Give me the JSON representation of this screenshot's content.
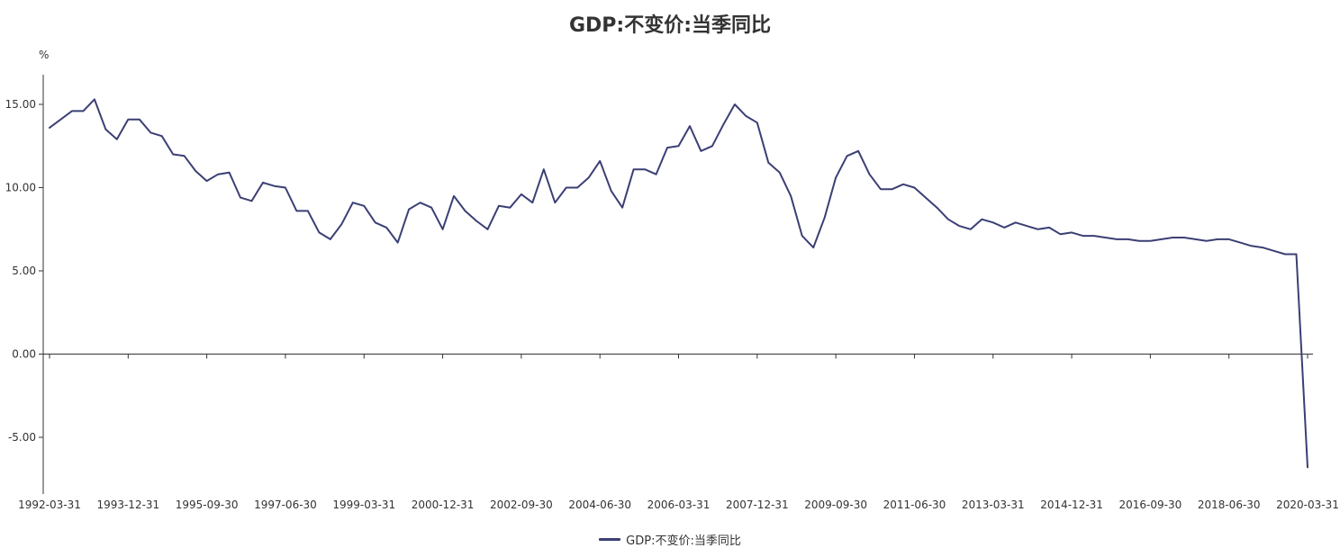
{
  "chart_data": {
    "type": "line",
    "title": "GDP:不变价:当季同比",
    "y_unit": "%",
    "ylim": [
      -7.5,
      17.5
    ],
    "y_ticks": [
      "15.00",
      "10.00",
      "5.00",
      "0.00",
      "-5.00"
    ],
    "x_tick_labels": [
      "1992-03-31",
      "1993-12-31",
      "1995-09-30",
      "1997-06-30",
      "1999-03-31",
      "2000-12-31",
      "2002-09-30",
      "2004-06-30",
      "2006-03-31",
      "2007-12-31",
      "2009-09-30",
      "2011-06-30",
      "2013-03-31",
      "2014-12-31",
      "2016-09-30",
      "2018-06-30",
      "2020-03-31"
    ],
    "legend": {
      "position": "bottom-center"
    },
    "grid": false,
    "colors": {
      "series": "#3b3f74",
      "axis": "#333333"
    },
    "series": [
      {
        "name": "GDP:不变价:当季同比",
        "values": [
          13.6,
          14.1,
          14.6,
          14.6,
          15.3,
          13.5,
          12.9,
          14.1,
          14.1,
          13.3,
          13.1,
          12.0,
          11.9,
          11.0,
          10.4,
          10.8,
          10.9,
          9.4,
          9.2,
          10.3,
          10.1,
          10.0,
          8.6,
          8.6,
          7.3,
          6.9,
          7.8,
          9.1,
          8.9,
          7.9,
          7.6,
          6.7,
          8.7,
          9.1,
          8.8,
          7.5,
          9.5,
          8.6,
          8.0,
          7.5,
          8.9,
          8.8,
          9.6,
          9.1,
          11.1,
          9.1,
          10.0,
          10.0,
          10.6,
          11.6,
          9.8,
          8.8,
          11.1,
          11.1,
          10.8,
          12.4,
          12.5,
          13.7,
          12.2,
          12.5,
          13.8,
          15.0,
          14.3,
          13.9,
          11.5,
          10.9,
          9.5,
          7.1,
          6.4,
          8.2,
          10.6,
          11.9,
          12.2,
          10.8,
          9.9,
          9.9,
          10.2,
          10.0,
          9.4,
          8.8,
          8.1,
          7.7,
          7.5,
          8.1,
          7.9,
          7.6,
          7.9,
          7.7,
          7.5,
          7.6,
          7.2,
          7.3,
          7.1,
          7.1,
          7.0,
          6.9,
          6.9,
          6.8,
          6.8,
          6.9,
          7.0,
          7.0,
          6.9,
          6.8,
          6.9,
          6.9,
          6.7,
          6.5,
          6.4,
          6.2,
          6.0,
          6.0,
          -6.8
        ]
      }
    ]
  }
}
